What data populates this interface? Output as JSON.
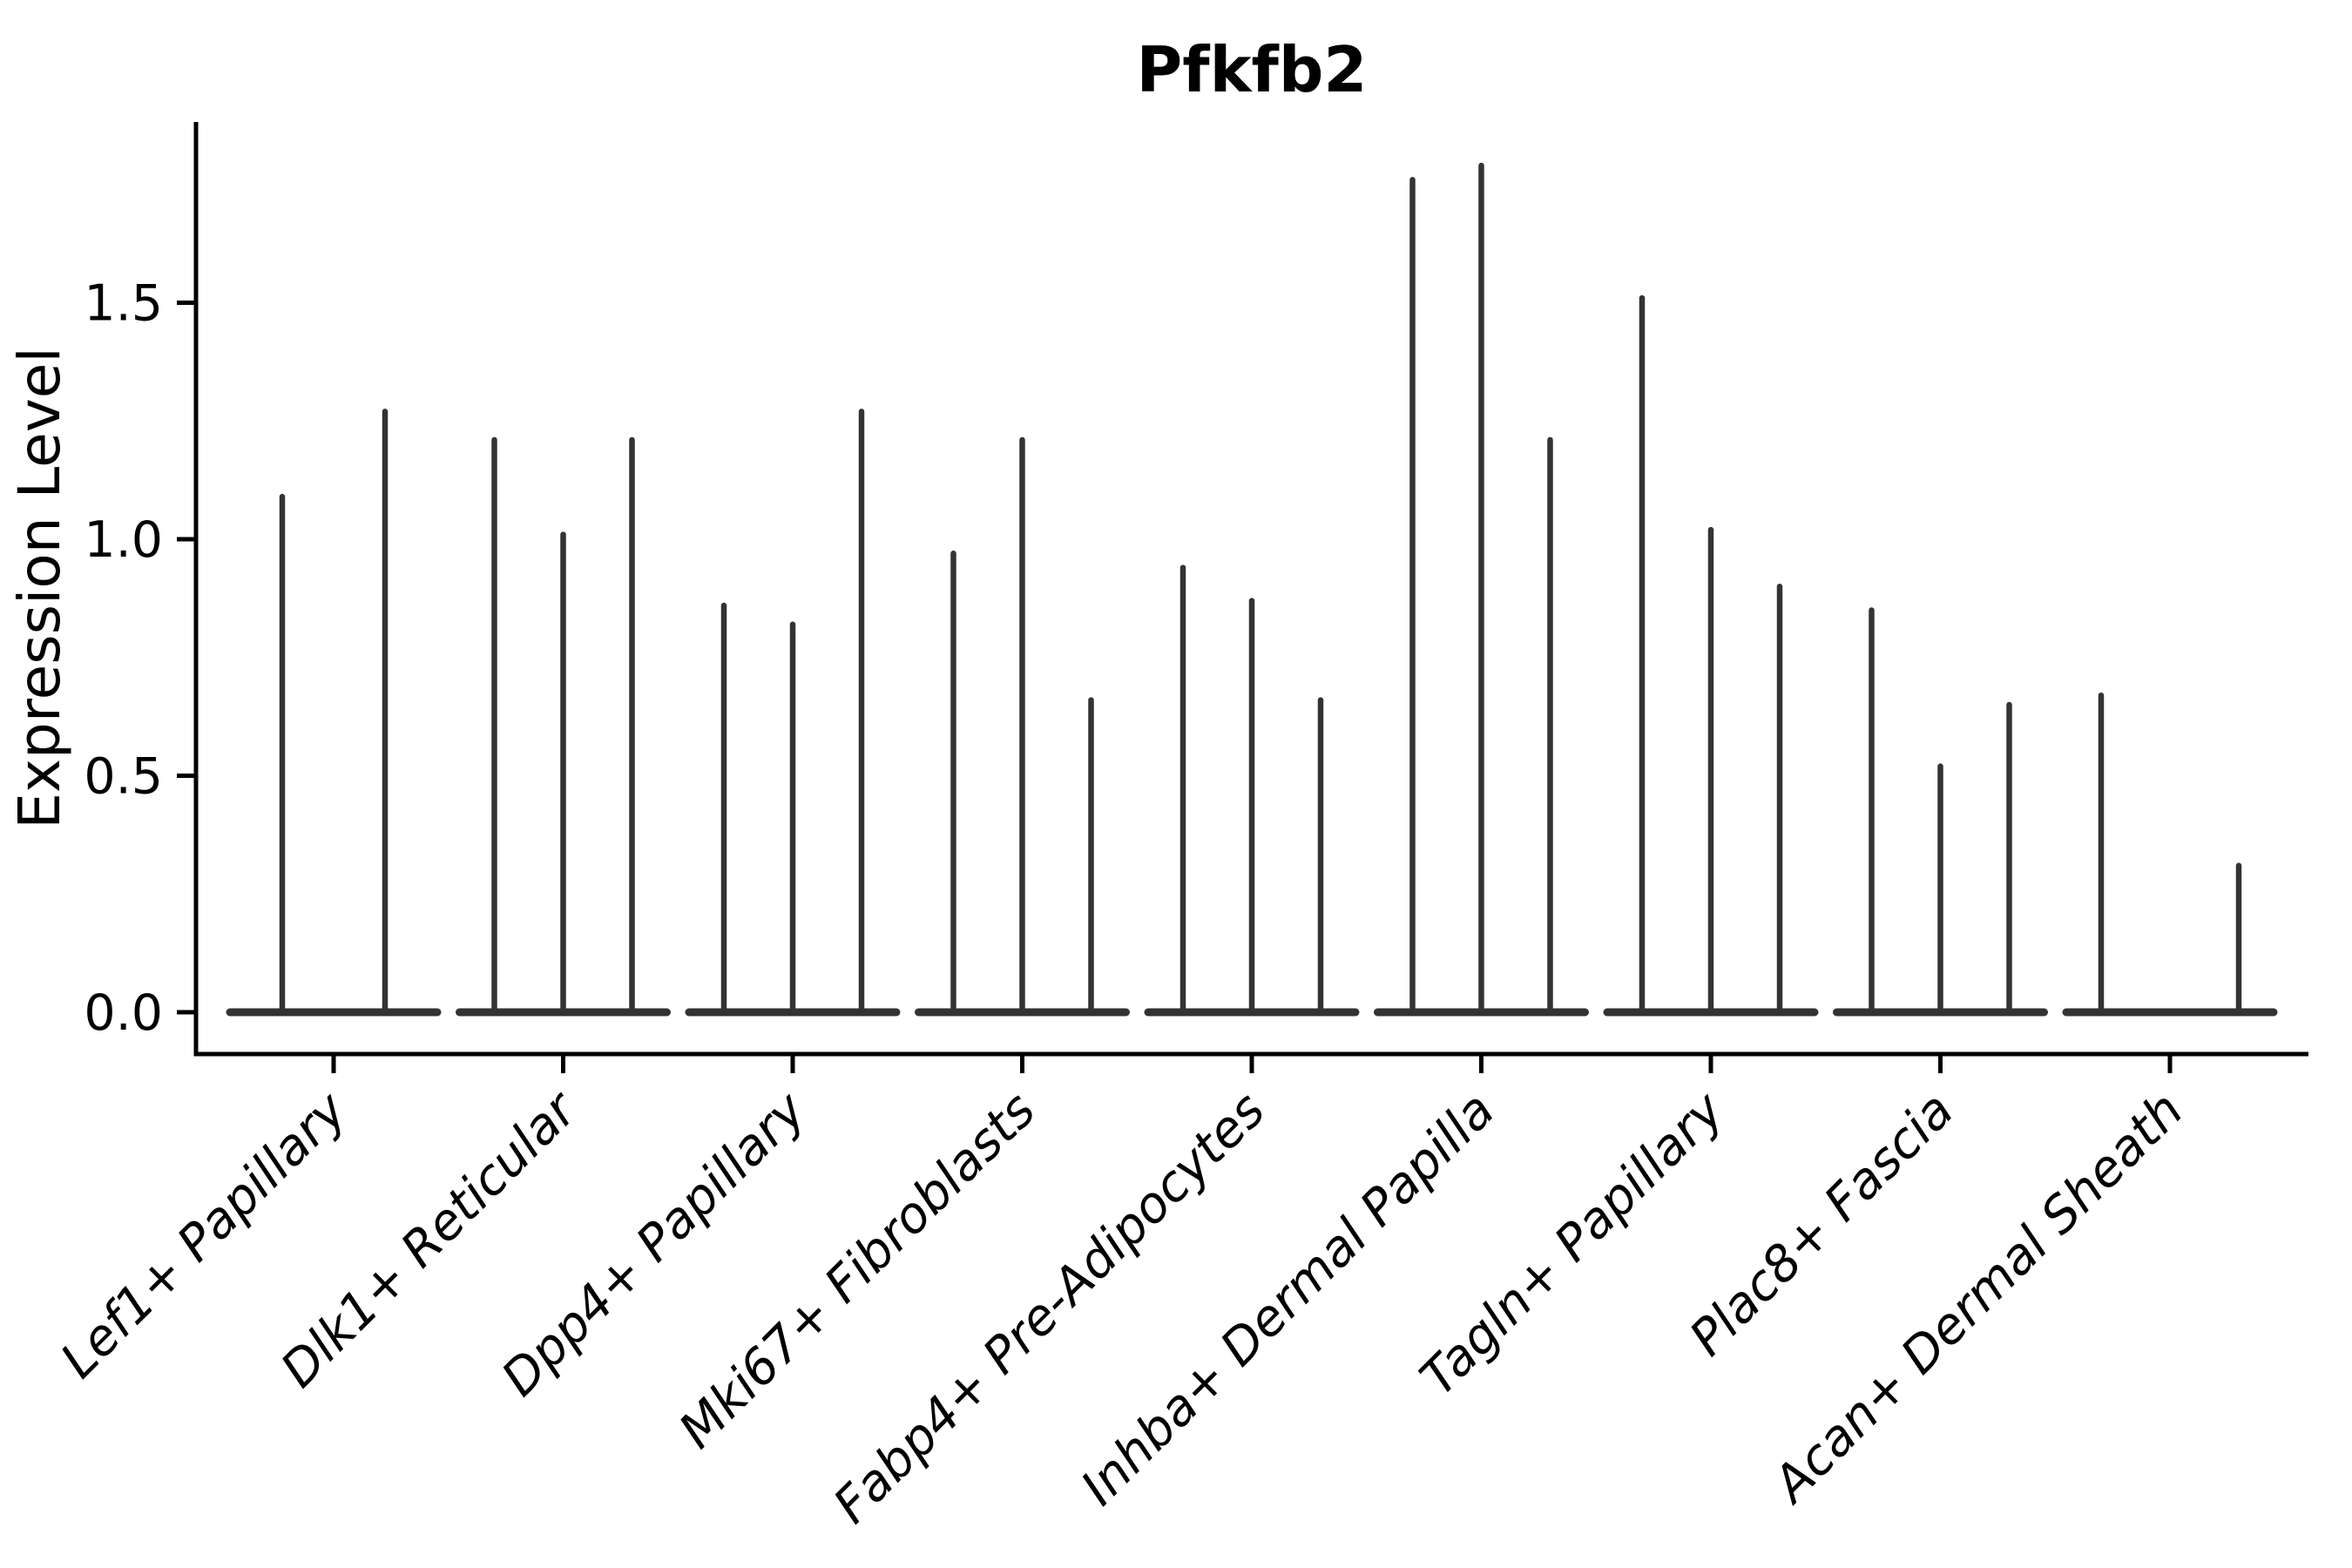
{
  "chart_data": {
    "type": "violin",
    "title": "Pfkfb2",
    "ylabel": "Expression Level",
    "xlabel": "",
    "ylim": [
      -0.09,
      1.88
    ],
    "grid": false,
    "legend": "none",
    "yticks": [
      {
        "value": 0.0,
        "label": "0.0"
      },
      {
        "value": 0.5,
        "label": "0.5"
      },
      {
        "value": 1.0,
        "label": "1.0"
      },
      {
        "value": 1.5,
        "label": "1.5"
      }
    ],
    "categories": [
      "Lef1+ Papillary",
      "Dlk1+ Reticular",
      "Dpp4+ Papillary",
      "Mki67+ Fibroblasts",
      "Fabp4+ Pre-Adipocytes",
      "Inhba+ Dermal Papilla",
      "Tagln+ Papillary",
      "Plac8+ Fascia",
      "Acan+ Dermal Sheath"
    ],
    "groups": [
      {
        "category": "Lef1+ Papillary",
        "violins": [
          {
            "offset": -59,
            "max": 1.09
          },
          {
            "offset": 59,
            "max": 1.27
          }
        ]
      },
      {
        "category": "Dlk1+ Reticular",
        "violins": [
          {
            "offset": -79,
            "max": 1.21
          },
          {
            "offset": 0,
            "max": 1.01
          },
          {
            "offset": 79,
            "max": 1.21
          }
        ]
      },
      {
        "category": "Dpp4+ Papillary",
        "violins": [
          {
            "offset": -79,
            "max": 0.86
          },
          {
            "offset": 0,
            "max": 0.82
          },
          {
            "offset": 79,
            "max": 1.27
          }
        ]
      },
      {
        "category": "Mki67+ Fibroblasts",
        "violins": [
          {
            "offset": -79,
            "max": 0.97
          },
          {
            "offset": 0,
            "max": 1.21
          },
          {
            "offset": 79,
            "max": 0.66
          }
        ]
      },
      {
        "category": "Fabp4+ Pre-Adipocytes",
        "violins": [
          {
            "offset": -79,
            "max": 0.94
          },
          {
            "offset": 0,
            "max": 0.87
          },
          {
            "offset": 79,
            "max": 0.66
          }
        ]
      },
      {
        "category": "Inhba+ Dermal Papilla",
        "violins": [
          {
            "offset": -79,
            "max": 1.76
          },
          {
            "offset": 0,
            "max": 1.79
          },
          {
            "offset": 79,
            "max": 1.21
          }
        ]
      },
      {
        "category": "Tagln+ Papillary",
        "violins": [
          {
            "offset": -79,
            "max": 1.51
          },
          {
            "offset": 0,
            "max": 1.02
          },
          {
            "offset": 79,
            "max": 0.9
          }
        ]
      },
      {
        "category": "Plac8+ Fascia",
        "violins": [
          {
            "offset": -79,
            "max": 0.85
          },
          {
            "offset": 0,
            "max": 0.52
          },
          {
            "offset": 79,
            "max": 0.65
          }
        ]
      },
      {
        "category": "Acan+ Dermal Sheath",
        "violins": [
          {
            "offset": -79,
            "max": 0.67
          },
          {
            "offset": 79,
            "max": 0.31
          }
        ]
      }
    ],
    "baseline_value": 0.0,
    "colors": {
      "violin": "#333333",
      "spine": "#000000",
      "background": "#ffffff"
    }
  }
}
